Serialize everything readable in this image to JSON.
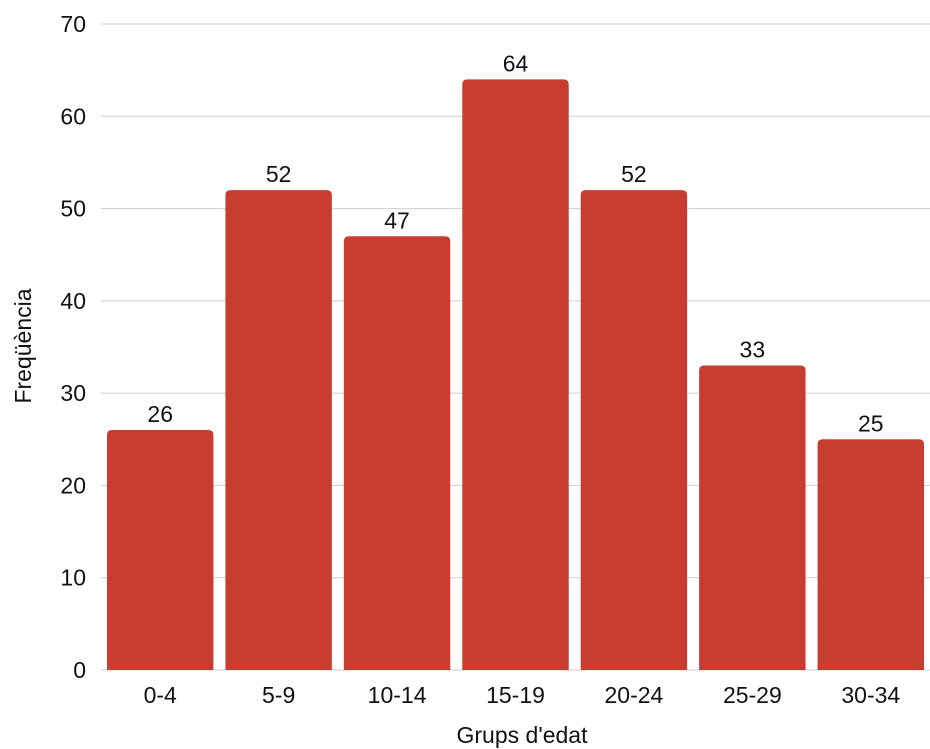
{
  "chart_data": {
    "type": "bar",
    "categories": [
      "0-4",
      "5-9",
      "10-14",
      "15-19",
      "20-24",
      "25-29",
      "30-34"
    ],
    "values": [
      26,
      52,
      47,
      64,
      52,
      33,
      25
    ],
    "title": "",
    "xlabel": "Grups d'edat",
    "ylabel": "Freqüència",
    "ylim": [
      0,
      70
    ],
    "yticks": [
      0,
      10,
      20,
      30,
      40,
      50,
      60,
      70
    ],
    "grid": true,
    "legend": "none",
    "data_labels": true,
    "bar_color": "#c93c30",
    "text_color": "#111111",
    "grid_color": "#cfcfcf"
  }
}
